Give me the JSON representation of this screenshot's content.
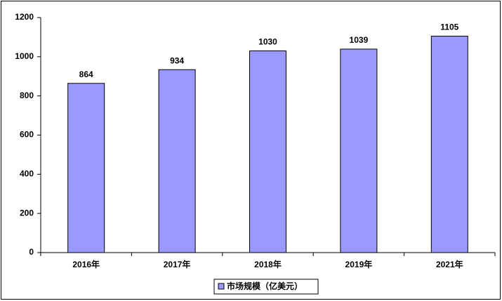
{
  "chart_data": {
    "type": "bar",
    "categories": [
      "2016年",
      "2017年",
      "2018年",
      "2019年",
      "2021年"
    ],
    "series": [
      {
        "name": "市场规模（亿美元）",
        "color": "#9999ff",
        "values": [
          864,
          934,
          1030,
          1039,
          1105
        ]
      }
    ],
    "ylim": [
      0,
      1200
    ],
    "yticks": [
      0,
      200,
      400,
      600,
      800,
      1000,
      1200
    ],
    "grid": false,
    "legend": "bottom"
  }
}
